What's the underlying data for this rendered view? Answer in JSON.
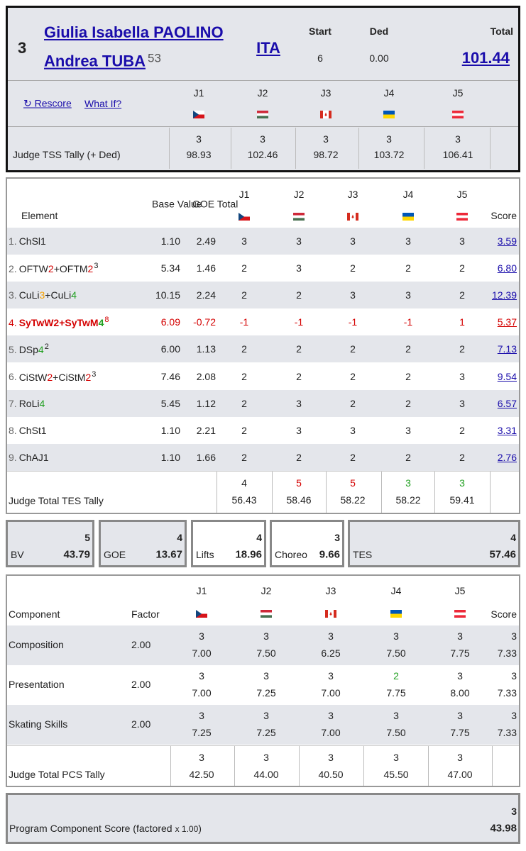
{
  "header": {
    "rank": "3",
    "names": [
      "Giulia Isabella PAOLINO",
      "Andrea TUBA"
    ],
    "bib": "53",
    "nation": "ITA",
    "start_label": "Start",
    "start": "6",
    "ded_label": "Ded",
    "ded": "0.00",
    "total_label": "Total",
    "total": "101.44",
    "rescore": "↻ Rescore",
    "what_if": "What If?",
    "judges": [
      "J1",
      "J2",
      "J3",
      "J4",
      "J5"
    ],
    "tss_label": "Judge TSS Tally (+ Ded)",
    "tss": [
      {
        "rank": "3",
        "score": "98.93"
      },
      {
        "rank": "3",
        "score": "102.46"
      },
      {
        "rank": "3",
        "score": "98.72"
      },
      {
        "rank": "3",
        "score": "103.72"
      },
      {
        "rank": "3",
        "score": "106.41"
      }
    ]
  },
  "elements": {
    "headers": {
      "element": "Element",
      "base": "Base Value",
      "goe": "GOE Total",
      "judges": [
        "J1",
        "J2",
        "J3",
        "J4",
        "J5"
      ],
      "score": "Score"
    },
    "rows": [
      {
        "num": "1.",
        "name": [
          {
            "text": "ChSl1"
          }
        ],
        "base": "1.10",
        "goe": "2.49",
        "marks": [
          "3",
          "3",
          "3",
          "3",
          "3"
        ],
        "score": "3.59"
      },
      {
        "num": "2.",
        "name": [
          {
            "text": "OFTW"
          },
          {
            "text": "2",
            "color": "#d40000"
          },
          {
            "text": "+OFTM"
          },
          {
            "text": "2",
            "color": "#d40000"
          }
        ],
        "sup": "3",
        "base": "5.34",
        "goe": "1.46",
        "marks": [
          "2",
          "3",
          "2",
          "2",
          "2"
        ],
        "score": "6.80"
      },
      {
        "num": "3.",
        "name": [
          {
            "text": "CuLi"
          },
          {
            "text": "3",
            "color": "#f5a000"
          },
          {
            "text": "+CuLi"
          },
          {
            "text": "4",
            "color": "#22a022"
          }
        ],
        "base": "10.15",
        "goe": "2.24",
        "marks": [
          "2",
          "2",
          "3",
          "3",
          "2"
        ],
        "score": "12.39"
      },
      {
        "num": "4.",
        "name": [
          {
            "text": "SyTwW2+SyTwM"
          },
          {
            "text": "4",
            "color": "#22a022"
          }
        ],
        "sup": "8",
        "color": "#d40000",
        "bold_name": true,
        "base": "6.09",
        "goe": "-0.72",
        "marks": [
          "-1",
          "-1",
          "-1",
          "-1",
          "1"
        ],
        "score": "5.37"
      },
      {
        "num": "5.",
        "name": [
          {
            "text": "DSp"
          },
          {
            "text": "4",
            "color": "#22a022"
          }
        ],
        "sup": "2",
        "base": "6.00",
        "goe": "1.13",
        "marks": [
          "2",
          "2",
          "2",
          "2",
          "2"
        ],
        "score": "7.13"
      },
      {
        "num": "6.",
        "name": [
          {
            "text": "CiStW"
          },
          {
            "text": "2",
            "color": "#d40000"
          },
          {
            "text": "+CiStM"
          },
          {
            "text": "2",
            "color": "#d40000"
          }
        ],
        "sup": "3",
        "base": "7.46",
        "goe": "2.08",
        "marks": [
          "2",
          "2",
          "2",
          "2",
          "3"
        ],
        "score": "9.54"
      },
      {
        "num": "7.",
        "name": [
          {
            "text": "RoLi"
          },
          {
            "text": "4",
            "color": "#22a022"
          }
        ],
        "base": "5.45",
        "goe": "1.12",
        "marks": [
          "2",
          "3",
          "2",
          "2",
          "3"
        ],
        "score": "6.57"
      },
      {
        "num": "8.",
        "name": [
          {
            "text": "ChSt1"
          }
        ],
        "base": "1.10",
        "goe": "2.21",
        "marks": [
          "2",
          "3",
          "3",
          "3",
          "2"
        ],
        "score": "3.31"
      },
      {
        "num": "9.",
        "name": [
          {
            "text": "ChAJ1"
          }
        ],
        "base": "1.10",
        "goe": "1.66",
        "marks": [
          "2",
          "2",
          "2",
          "2",
          "2"
        ],
        "score": "2.76"
      }
    ],
    "tally_label": "Judge Total TES Tally",
    "tally": [
      {
        "rank": "4",
        "score": "56.43"
      },
      {
        "rank": "5",
        "score": "58.46",
        "color": "#d40000"
      },
      {
        "rank": "5",
        "score": "58.22",
        "color": "#d40000"
      },
      {
        "rank": "3",
        "score": "58.22",
        "color": "#22a022"
      },
      {
        "rank": "3",
        "score": "59.41",
        "color": "#22a022"
      }
    ]
  },
  "summary": [
    {
      "label": "BV",
      "rank": "5",
      "value": "43.79",
      "background": "#e4e6eb"
    },
    {
      "label": "GOE",
      "rank": "4",
      "value": "13.67",
      "background": "#e4e6eb"
    },
    {
      "label": "Lifts",
      "rank": "4",
      "value": "18.96",
      "background": "#ffffff"
    },
    {
      "label": "Choreo",
      "rank": "3",
      "value": "9.66",
      "background": "#ffffff"
    },
    {
      "label": "TES",
      "rank": "4",
      "value": "57.46",
      "background": "#e4e6eb"
    }
  ],
  "components": {
    "headers": {
      "component": "Component",
      "factor": "Factor",
      "judges": [
        "J1",
        "J2",
        "J3",
        "J4",
        "J5"
      ],
      "score": "Score"
    },
    "rows": [
      {
        "name": "Composition",
        "factor": "2.00",
        "marks": [
          {
            "rank": "3",
            "score": "7.00"
          },
          {
            "rank": "3",
            "score": "7.50"
          },
          {
            "rank": "3",
            "score": "6.25"
          },
          {
            "rank": "3",
            "score": "7.50"
          },
          {
            "rank": "3",
            "score": "7.75"
          }
        ],
        "result": {
          "rank": "3",
          "score": "7.33"
        }
      },
      {
        "name": "Presentation",
        "factor": "2.00",
        "marks": [
          {
            "rank": "3",
            "score": "7.00"
          },
          {
            "rank": "3",
            "score": "7.25"
          },
          {
            "rank": "3",
            "score": "7.00"
          },
          {
            "rank": "2",
            "score": "7.75",
            "color": "#22a022"
          },
          {
            "rank": "3",
            "score": "8.00"
          }
        ],
        "result": {
          "rank": "3",
          "score": "7.33"
        }
      },
      {
        "name": "Skating Skills",
        "factor": "2.00",
        "marks": [
          {
            "rank": "3",
            "score": "7.25"
          },
          {
            "rank": "3",
            "score": "7.25"
          },
          {
            "rank": "3",
            "score": "7.00"
          },
          {
            "rank": "3",
            "score": "7.50"
          },
          {
            "rank": "3",
            "score": "7.75"
          }
        ],
        "result": {
          "rank": "3",
          "score": "7.33"
        }
      }
    ],
    "tally_label": "Judge Total PCS Tally",
    "tally": [
      {
        "rank": "3",
        "score": "42.50"
      },
      {
        "rank": "3",
        "score": "44.00"
      },
      {
        "rank": "3",
        "score": "40.50"
      },
      {
        "rank": "3",
        "score": "45.50"
      },
      {
        "rank": "3",
        "score": "47.00"
      }
    ]
  },
  "pcs": {
    "label": "Program Component Score (factored",
    "factor": "x 1.00",
    "close": ")",
    "rank": "3",
    "value": "43.98"
  }
}
